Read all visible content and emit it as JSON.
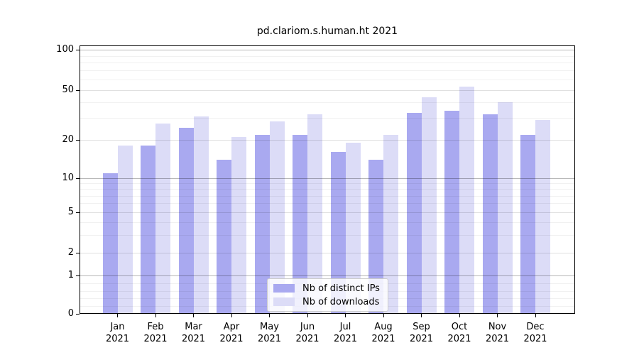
{
  "title": "pd.clariom.s.human.ht 2021",
  "colors": {
    "distinct_ips": "#a9a9f0",
    "downloads": "#dcdcf7",
    "axis": "#000000",
    "background": "#ffffff"
  },
  "legend": {
    "items": [
      {
        "label": "Nb of distinct IPs",
        "color": "#a9a9f0"
      },
      {
        "label": "Nb of downloads",
        "color": "#dcdcf7"
      }
    ]
  },
  "y_axis": {
    "tick_labels": [
      "0",
      "1",
      "2",
      "5",
      "10",
      "20",
      "50",
      "100"
    ]
  },
  "x_axis": {
    "categories": [
      {
        "month": "Jan",
        "year": "2021"
      },
      {
        "month": "Feb",
        "year": "2021"
      },
      {
        "month": "Mar",
        "year": "2021"
      },
      {
        "month": "Apr",
        "year": "2021"
      },
      {
        "month": "May",
        "year": "2021"
      },
      {
        "month": "Jun",
        "year": "2021"
      },
      {
        "month": "Jul",
        "year": "2021"
      },
      {
        "month": "Aug",
        "year": "2021"
      },
      {
        "month": "Sep",
        "year": "2021"
      },
      {
        "month": "Oct",
        "year": "2021"
      },
      {
        "month": "Nov",
        "year": "2021"
      },
      {
        "month": "Dec",
        "year": "2021"
      }
    ]
  },
  "chart_data": {
    "type": "bar",
    "title": "pd.clariom.s.human.ht 2021",
    "categories": [
      "Jan 2021",
      "Feb 2021",
      "Mar 2021",
      "Apr 2021",
      "May 2021",
      "Jun 2021",
      "Jul 2021",
      "Aug 2021",
      "Sep 2021",
      "Oct 2021",
      "Nov 2021",
      "Dec 2021"
    ],
    "series": [
      {
        "name": "Nb of distinct IPs",
        "color": "#a9a9f0",
        "values": [
          11,
          18,
          25,
          14,
          22,
          22,
          16,
          14,
          33,
          34,
          32,
          22
        ]
      },
      {
        "name": "Nb of downloads",
        "color": "#dcdcf7",
        "values": [
          18,
          27,
          31,
          21,
          28,
          32,
          19,
          22,
          44,
          53,
          40,
          29
        ]
      }
    ],
    "xlabel": "",
    "ylabel": "",
    "yscale": "symlog",
    "y_ticks": [
      0,
      1,
      2,
      5,
      10,
      20,
      50,
      100
    ],
    "ylim": [
      0,
      105
    ],
    "grid": true,
    "legend_position": "bottom-center"
  }
}
